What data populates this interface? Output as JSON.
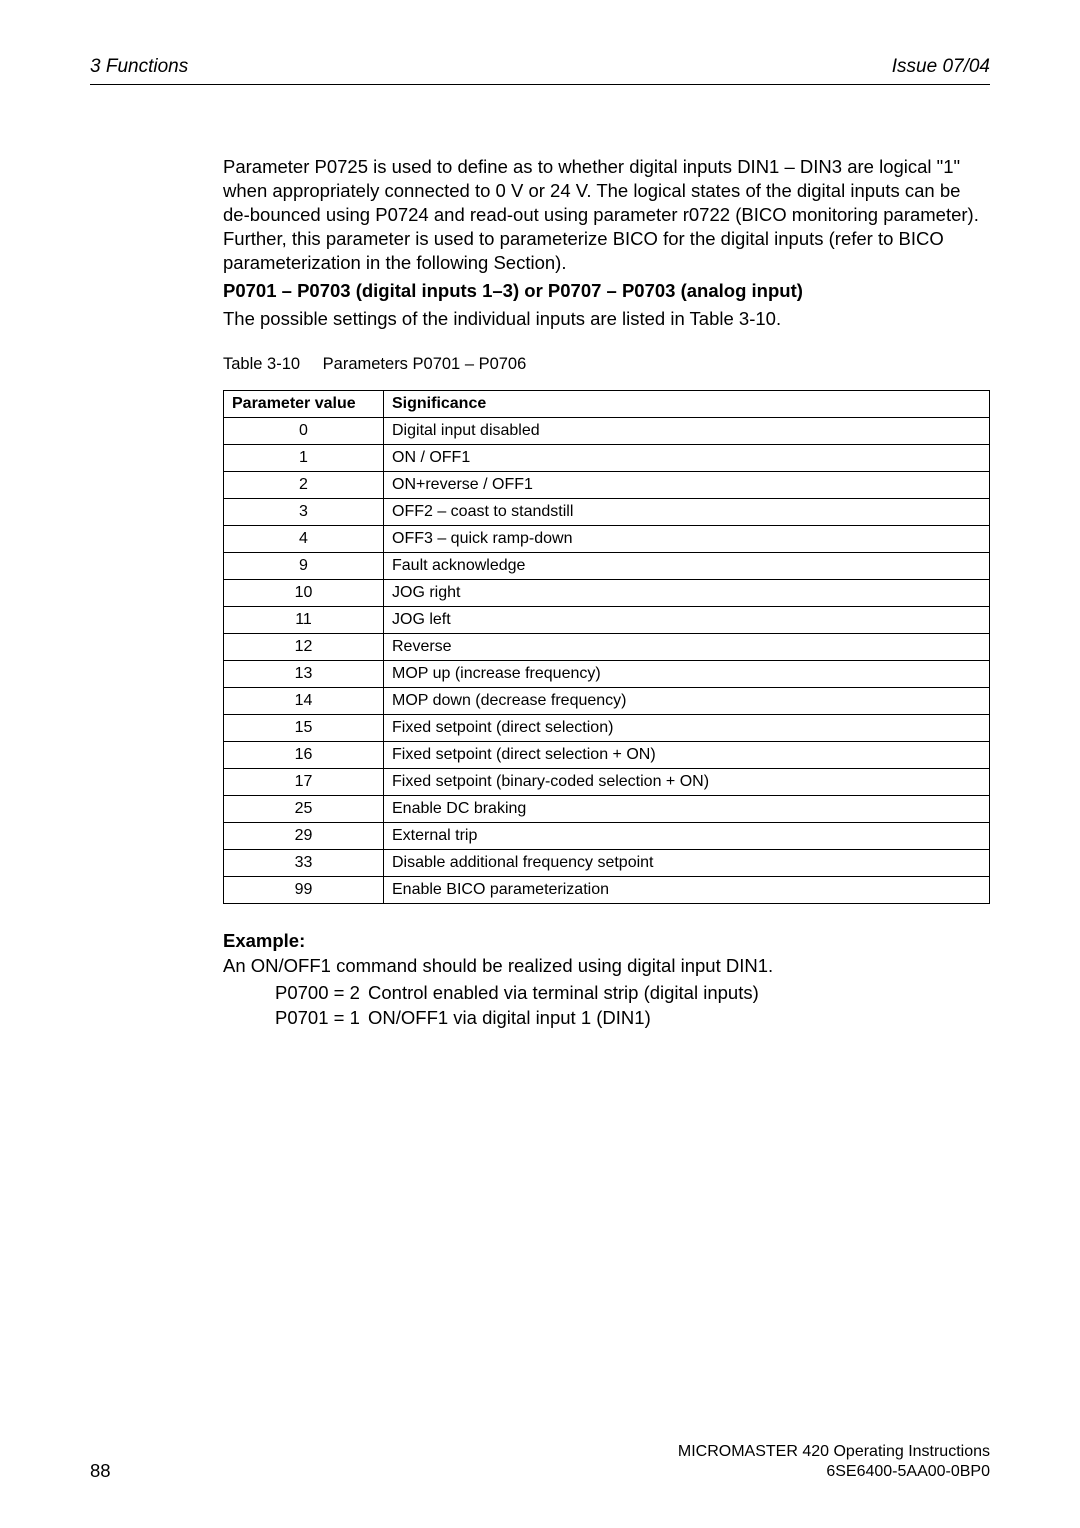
{
  "header": {
    "left": "3  Functions",
    "right": "Issue 07/04"
  },
  "body": {
    "para1": "Parameter P0725 is used to define as to whether digital inputs DIN1 – DIN3 are logical \"1\" when appropriately connected to 0 V or 24 V. The logical states of the digital inputs can be de-bounced using P0724 and read-out using parameter r0722 (BICO monitoring parameter). Further, this parameter is used to parameterize BICO for the digital inputs (refer to BICO parameterization in the following Section).",
    "heading": "P0701 – P0703 (digital inputs 1–3) or P0707 – P0703 (analog input)",
    "para2": "The possible settings of the individual inputs are listed in Table 3-10.",
    "table_caption_label": "Table 3-10",
    "table_caption_title": "Parameters P0701 – P0706"
  },
  "table": {
    "columns": [
      "Parameter value",
      "Significance"
    ],
    "rows": [
      [
        "0",
        "Digital input disabled"
      ],
      [
        "1",
        "ON / OFF1"
      ],
      [
        "2",
        "ON+reverse / OFF1"
      ],
      [
        "3",
        "OFF2 – coast to standstill"
      ],
      [
        "4",
        "OFF3 – quick ramp-down"
      ],
      [
        "9",
        "Fault acknowledge"
      ],
      [
        "10",
        "JOG right"
      ],
      [
        "11",
        "JOG left"
      ],
      [
        "12",
        "Reverse"
      ],
      [
        "13",
        "MOP up (increase frequency)"
      ],
      [
        "14",
        "MOP down (decrease frequency)"
      ],
      [
        "15",
        "Fixed setpoint (direct selection)"
      ],
      [
        "16",
        "Fixed setpoint (direct selection + ON)"
      ],
      [
        "17",
        "Fixed setpoint (binary-coded selection + ON)"
      ],
      [
        "25",
        "Enable DC braking"
      ],
      [
        "29",
        "External trip"
      ],
      [
        "33",
        "Disable additional frequency setpoint"
      ],
      [
        "99",
        "Enable BICO parameterization"
      ]
    ]
  },
  "example": {
    "heading": "Example:",
    "intro": "An ON/OFF1 command should be realized using digital input DIN1.",
    "rows": [
      {
        "key": "P0700 = 2",
        "desc": "Control enabled via terminal strip (digital inputs)"
      },
      {
        "key": "P0701 = 1",
        "desc": "ON/OFF1 via digital input 1 (DIN1)"
      }
    ]
  },
  "footer": {
    "page": "88",
    "line1": "MICROMASTER 420    Operating Instructions",
    "line2": "6SE6400-5AA00-0BP0"
  }
}
